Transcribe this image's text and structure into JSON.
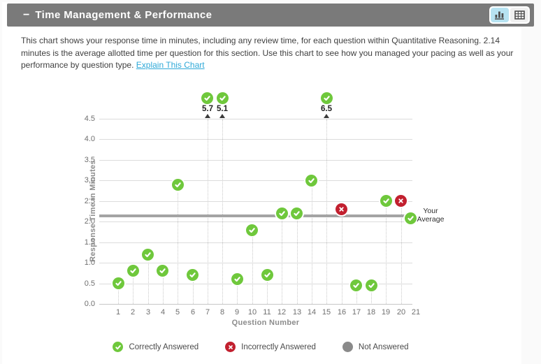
{
  "panel": {
    "collapse_icon": "−",
    "title": "Time Management & Performance",
    "view_toggle": {
      "active_view": "chart",
      "buttons": [
        {
          "name": "chart-view",
          "icon": "bar-chart-icon"
        },
        {
          "name": "table-view",
          "icon": "table-icon"
        }
      ]
    }
  },
  "description": {
    "text": "This chart shows your response time in minutes, including any review time, for each question within Quantitative Reasoning. 2.14 minutes is the average allotted time per question for this section. Use this chart to see how you managed your pacing as well as your performance by question type.",
    "link_label": "Explain This Chart"
  },
  "chart_data": {
    "type": "scatter",
    "xlabel": "Question Number",
    "ylabel": "Response Time in Minutes",
    "x_ticks": [
      1,
      2,
      3,
      4,
      5,
      6,
      7,
      8,
      9,
      10,
      11,
      12,
      13,
      14,
      15,
      16,
      17,
      18,
      19,
      20,
      21
    ],
    "y_ticks": [
      "0.0",
      "0.5",
      "1.0",
      "1.5",
      "2.0",
      "2.5",
      "3.0",
      "3.5",
      "4.0",
      "4.5"
    ],
    "ylim": [
      0,
      4.5
    ],
    "grid": true,
    "average_line": {
      "value": 2.14,
      "label_line1": "Your",
      "label_line2": "Average",
      "marker": "check-circle-icon"
    },
    "points": [
      {
        "q": 1,
        "minutes": 0.5,
        "status": "correct"
      },
      {
        "q": 2,
        "minutes": 0.8,
        "status": "correct"
      },
      {
        "q": 3,
        "minutes": 1.2,
        "status": "correct"
      },
      {
        "q": 4,
        "minutes": 0.8,
        "status": "correct"
      },
      {
        "q": 5,
        "minutes": 2.9,
        "status": "correct"
      },
      {
        "q": 6,
        "minutes": 0.7,
        "status": "correct"
      },
      {
        "q": 7,
        "minutes": 5.7,
        "status": "correct",
        "over_limit": true
      },
      {
        "q": 8,
        "minutes": 5.1,
        "status": "correct",
        "over_limit": true
      },
      {
        "q": 9,
        "minutes": 0.6,
        "status": "correct"
      },
      {
        "q": 10,
        "minutes": 1.8,
        "status": "correct"
      },
      {
        "q": 11,
        "minutes": 0.7,
        "status": "correct"
      },
      {
        "q": 12,
        "minutes": 2.2,
        "status": "correct"
      },
      {
        "q": 13,
        "minutes": 2.2,
        "status": "correct"
      },
      {
        "q": 14,
        "minutes": 3.0,
        "status": "correct"
      },
      {
        "q": 15,
        "minutes": 6.5,
        "status": "correct",
        "over_limit": true
      },
      {
        "q": 16,
        "minutes": 2.3,
        "status": "incorrect"
      },
      {
        "q": 17,
        "minutes": 0.45,
        "status": "correct"
      },
      {
        "q": 18,
        "minutes": 0.45,
        "status": "correct"
      },
      {
        "q": 19,
        "minutes": 2.5,
        "status": "correct"
      },
      {
        "q": 20,
        "minutes": 2.5,
        "status": "incorrect"
      }
    ],
    "legend": [
      {
        "label": "Correctly Answered",
        "status": "correct",
        "icon": "check-circle-icon"
      },
      {
        "label": "Incorrectly Answered",
        "status": "incorrect",
        "icon": "x-circle-icon"
      },
      {
        "label": "Not Answered",
        "status": "not_answered",
        "icon": "gray-circle-icon"
      }
    ],
    "legend_position": "bottom"
  },
  "colors": {
    "correct": "#6fc83c",
    "incorrect": "#c2202f",
    "not_answered": "#8a8a8a",
    "header_bg": "#7a7a7a",
    "link": "#2ea9d8",
    "active_toggle_bg": "#b7e3f2",
    "average_line": "#a4a4a4",
    "gridline": "#dcdcdc"
  }
}
